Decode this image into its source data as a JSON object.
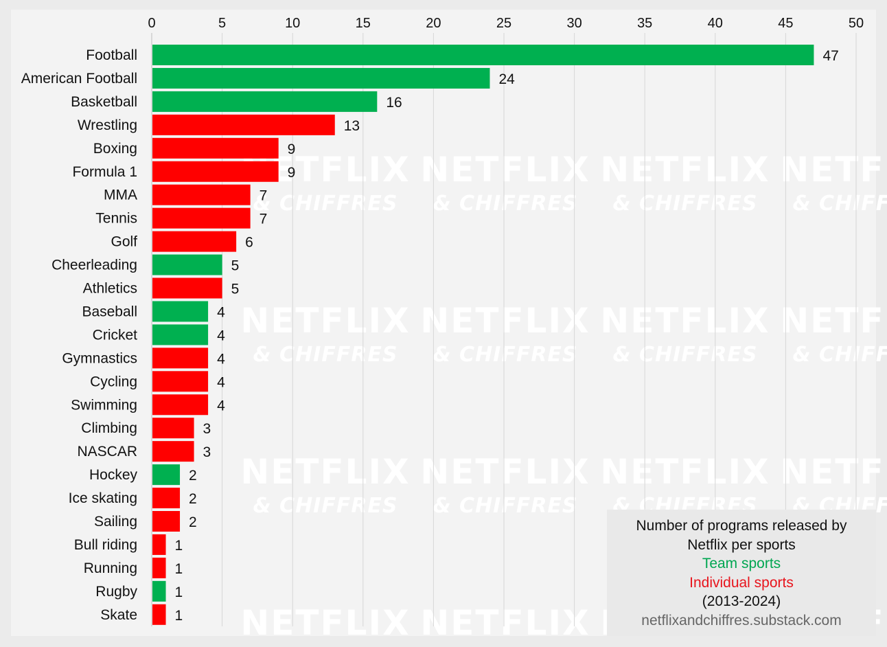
{
  "chart_data": {
    "type": "bar",
    "orientation": "horizontal",
    "xlim": [
      0,
      50
    ],
    "xticks": [
      0,
      5,
      10,
      15,
      20,
      25,
      30,
      35,
      40,
      45,
      50
    ],
    "axis_position": "top",
    "grid": true,
    "categories": [
      "Football",
      "American Football",
      "Basketball",
      "Wrestling",
      "Boxing",
      "Formula 1",
      "MMA",
      "Tennis",
      "Golf",
      "Cheerleading",
      "Athletics",
      "Baseball",
      "Cricket",
      "Gymnastics",
      "Cycling",
      "Swimming",
      "Climbing",
      "NASCAR",
      "Hockey",
      "Ice skating",
      "Sailing",
      "Bull riding",
      "Running",
      "Rugby",
      "Skate"
    ],
    "values": [
      47,
      24,
      16,
      13,
      9,
      9,
      7,
      7,
      6,
      5,
      5,
      4,
      4,
      4,
      4,
      4,
      3,
      3,
      2,
      2,
      2,
      1,
      1,
      1,
      1
    ],
    "groups": [
      "team",
      "team",
      "team",
      "individual",
      "individual",
      "individual",
      "individual",
      "individual",
      "individual",
      "team",
      "individual",
      "team",
      "team",
      "individual",
      "individual",
      "individual",
      "individual",
      "individual",
      "team",
      "individual",
      "individual",
      "individual",
      "individual",
      "team",
      "individual"
    ],
    "colors": {
      "team": "#00b050",
      "individual": "#ff0000"
    },
    "legend_placement": "bottom-right"
  },
  "legend": {
    "line1": "Number of programs released by",
    "line2": "Netflix per sports",
    "team": "Team sports",
    "individual": "Individual sports",
    "period": "(2013-2024)",
    "source": "netflixandchiffres.substack.com"
  },
  "watermark": {
    "line1": "NETFLIX",
    "line2": "& CHIFFRES"
  }
}
